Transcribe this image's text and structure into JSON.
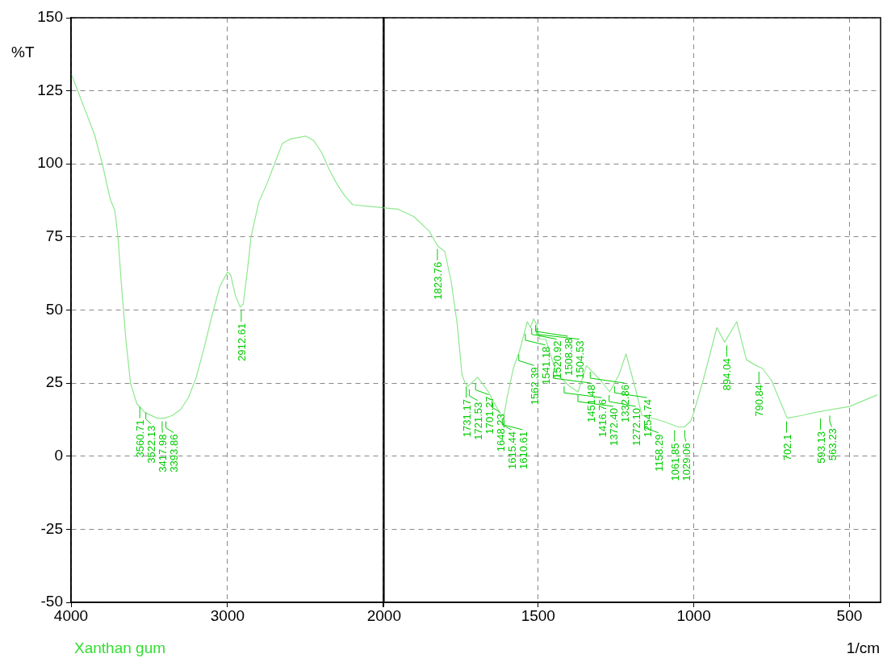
{
  "chart_data": [
    {
      "type": "line",
      "ylabel": "%T",
      "xlim": [
        4000,
        2000
      ],
      "xticks": [
        4000,
        3000,
        2000
      ],
      "ylim": [
        -50,
        150
      ],
      "yticks": [
        -50,
        -25,
        0,
        25,
        50,
        75,
        100,
        125,
        150
      ],
      "grid": true,
      "series": [
        {
          "name": "Xanthan gum",
          "color": "#8fe88f",
          "x": [
            4000,
            3950,
            3900,
            3850,
            3800,
            3750,
            3720,
            3700,
            3680,
            3650,
            3620,
            3580,
            3530,
            3450,
            3400,
            3350,
            3300,
            3250,
            3200,
            3150,
            3100,
            3050,
            3000,
            2980,
            2950,
            2920,
            2900,
            2870,
            2850,
            2800,
            2750,
            2700,
            2650,
            2600,
            2500,
            2450,
            2400,
            2350,
            2300,
            2250,
            2200,
            2100,
            2000
          ],
          "values": [
            131,
            124,
            117,
            110,
            100,
            88,
            84,
            75,
            60,
            40,
            25,
            18,
            15,
            13,
            13,
            14,
            16,
            20,
            27,
            37,
            48,
            58,
            63,
            62,
            55,
            51,
            52,
            65,
            75,
            87,
            93,
            100,
            107,
            108.5,
            109.5,
            108,
            104,
            98,
            93,
            89,
            86,
            85.5,
            85
          ]
        }
      ],
      "annotations": [
        {
          "text": "3560.71",
          "x": 3560.71,
          "y": 18
        },
        {
          "text": "3522.13",
          "x": 3522.13,
          "y": 16
        },
        {
          "text": "3417.98",
          "x": 3417.98,
          "y": 13
        },
        {
          "text": "3393.86",
          "x": 3393.86,
          "y": 13
        },
        {
          "text": "2912.61",
          "x": 2912.61,
          "y": 51
        }
      ]
    },
    {
      "type": "line",
      "xlabel": "1/cm",
      "xlim": [
        2000,
        400
      ],
      "xticks": [
        {
          "value": 2000,
          "label": null
        },
        1500,
        1000,
        500
      ],
      "ylim": [
        -50,
        150
      ],
      "yticks": [
        -50,
        -25,
        0,
        25,
        50,
        75,
        100,
        125,
        150
      ],
      "grid": true,
      "tick_labels": "x",
      "series": [
        {
          "color": "#8fe88f",
          "x": [
            2000,
            1950,
            1900,
            1850,
            1823.76,
            1800,
            1780,
            1760,
            1745,
            1735,
            1725,
            1715,
            1705,
            1695,
            1680,
            1660,
            1640,
            1620,
            1610,
            1600,
            1580,
            1560,
            1545,
            1535,
            1525,
            1515,
            1505,
            1495,
            1476,
            1440,
            1400,
            1372,
            1345,
            1300,
            1270,
            1240,
            1218,
            1200,
            1185,
            1167,
            1100,
            1050,
            1030,
            1010,
            1000,
            970,
            926,
            901,
            862,
            831,
            800,
            779,
            751,
            700,
            650,
            609,
            500,
            410
          ],
          "values": [
            85,
            84.5,
            82,
            77,
            72,
            70,
            60,
            45,
            28,
            25,
            24,
            25,
            26,
            27,
            25,
            22,
            18,
            14,
            14,
            20,
            30,
            36,
            42,
            46,
            44,
            47,
            45,
            40,
            40,
            28,
            24,
            22,
            31,
            26,
            22,
            28,
            35,
            28,
            22,
            14,
            12,
            10,
            10,
            12,
            15,
            26,
            44,
            39,
            46,
            33,
            31,
            30,
            26,
            13,
            14,
            15,
            17,
            21
          ]
        }
      ],
      "annotations": [
        {
          "text": "1823.76",
          "x": 1823.76,
          "y": 72
        },
        {
          "text": "1731.17",
          "x": 1731.17,
          "y": 25
        },
        {
          "text": "1721.53",
          "x": 1721.53,
          "y": 24
        },
        {
          "text": "1701.27",
          "x": 1701.27,
          "y": 26
        },
        {
          "text": "1648.23",
          "x": 1648.23,
          "y": 20
        },
        {
          "text": "1615.44",
          "x": 1615.44,
          "y": 14
        },
        {
          "text": "1610.61",
          "x": 1610.61,
          "y": 14
        },
        {
          "text": "1562.39",
          "x": 1562.39,
          "y": 36
        },
        {
          "text": "1541.18",
          "x": 1541.18,
          "y": 43
        },
        {
          "text": "1520.92",
          "x": 1520.92,
          "y": 45
        },
        {
          "text": "1508.38",
          "x": 1508.38,
          "y": 46
        },
        {
          "text": "1504.53",
          "x": 1504.53,
          "y": 45
        },
        {
          "text": "1451.48",
          "x": 1451.48,
          "y": 30
        },
        {
          "text": "1416.76",
          "x": 1416.76,
          "y": 25
        },
        {
          "text": "1372.40",
          "x": 1372.4,
          "y": 22
        },
        {
          "text": "1332.86",
          "x": 1332.86,
          "y": 30
        },
        {
          "text": "1272.10",
          "x": 1272.1,
          "y": 22
        },
        {
          "text": "1254.74",
          "x": 1254.74,
          "y": 25
        },
        {
          "text": "1158.29",
          "x": 1158.29,
          "y": 13
        },
        {
          "text": "1061.85",
          "x": 1061.85,
          "y": 10
        },
        {
          "text": "1029.06",
          "x": 1029.06,
          "y": 10
        },
        {
          "text": "894.04",
          "x": 894.04,
          "y": 39
        },
        {
          "text": "790.84",
          "x": 790.84,
          "y": 30
        },
        {
          "text": "702.1",
          "x": 702.1,
          "y": 13
        },
        {
          "text": "593.13",
          "x": 593.13,
          "y": 14
        },
        {
          "text": "563.23",
          "x": 563.23,
          "y": 15
        }
      ]
    }
  ]
}
